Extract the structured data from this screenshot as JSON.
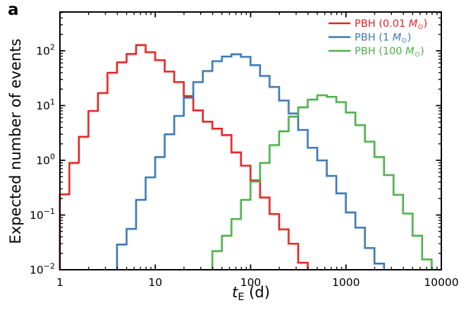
{
  "panel_label": "a",
  "axes": {
    "x": {
      "label_var": "t",
      "label_sub": "E",
      "label_rest": " (d)",
      "scale": "log",
      "range": [
        1,
        10000
      ],
      "tick_values": [
        1,
        10,
        100,
        1000,
        10000
      ],
      "tick_labels": [
        "1",
        "10",
        "100",
        "1000",
        "10000"
      ]
    },
    "y": {
      "label": "Expected number of events",
      "scale": "log",
      "range": [
        0.01,
        500
      ],
      "tick_base": "10",
      "tick_exponents": [
        -2,
        -1,
        0,
        1,
        2
      ]
    }
  },
  "legend": {
    "position": "upper right",
    "items": [
      {
        "id": "pbh-0.01-msun",
        "prefix": "PBH (0.01 ",
        "m": "M",
        "sun": "⊙",
        "suffix": ")",
        "color": "#e32322"
      },
      {
        "id": "pbh-1-msun",
        "prefix": "PBH (1 ",
        "m": "M",
        "sun": "⊙",
        "suffix": ")",
        "color": "#3a78b3"
      },
      {
        "id": "pbh-100-msun",
        "prefix": "PBH (100 ",
        "m": "M",
        "sun": "⊙",
        "suffix": ")",
        "color": "#4daf4a"
      }
    ]
  },
  "chart_data": {
    "type": "line",
    "style": "step-histogram-log-bins",
    "title": "",
    "xlabel": "t_E (d)",
    "ylabel": "Expected number of events",
    "x_scale": "log",
    "y_scale": "log",
    "xlim": [
      1,
      10000
    ],
    "ylim": [
      0.01,
      500
    ],
    "grid": false,
    "legend_position": "upper right",
    "bins_per_decade": 10,
    "bin_note": "bin k spans t_E from 10^(first_bin_log10_te + 0.1*k) to 10^(first_bin_log10_te + 0.1*(k+1)) days",
    "series": [
      {
        "name": "PBH (0.01 M☉)",
        "color": "#e32322",
        "first_bin_log10_te": 0.0,
        "values": [
          0.24,
          0.9,
          2.7,
          8.0,
          17,
          40,
          62,
          88,
          128,
          95,
          68,
          42,
          27,
          15,
          8.2,
          5.1,
          3.8,
          2.9,
          1.4,
          0.8,
          0.43,
          0.21,
          0.105,
          0.055,
          0.03,
          0.0135
        ]
      },
      {
        "name": "PBH (1 M☉)",
        "color": "#3a78b3",
        "first_bin_log10_te": 0.6,
        "values": [
          0.029,
          0.056,
          0.19,
          0.49,
          1.15,
          3.0,
          6.5,
          14,
          27,
          43,
          65,
          79,
          87,
          78,
          55,
          35,
          22,
          12.4,
          7.2,
          3.6,
          1.7,
          1.0,
          0.52,
          0.25,
          0.112,
          0.059,
          0.025,
          0.013
        ]
      },
      {
        "name": "PBH (100 M☉)",
        "color": "#4daf4a",
        "first_bin_log10_te": 1.6,
        "values": [
          0.022,
          0.042,
          0.085,
          0.19,
          0.41,
          0.9,
          1.9,
          3.4,
          6.3,
          9.3,
          12.9,
          15.5,
          14.5,
          11.6,
          7.5,
          4.4,
          2.2,
          1.15,
          0.54,
          0.235,
          0.107,
          0.042,
          0.0155
        ]
      }
    ]
  }
}
